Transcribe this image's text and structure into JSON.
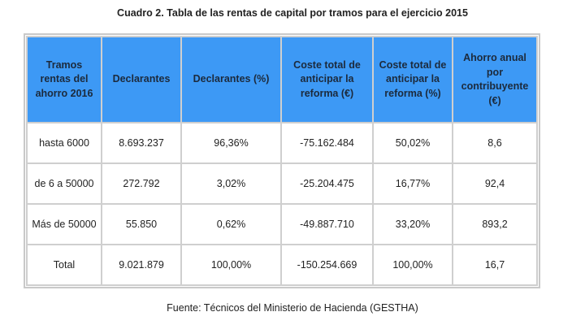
{
  "title": "Cuadro 2. Tabla de las rentas de capital por tramos para el ejercicio 2015",
  "headers": [
    "Tramos rentas del ahorro 2016",
    "Declarantes",
    "Declarantes (%)",
    "Coste total de anticipar la reforma (€)",
    "Coste total de anticipar la reforma (%)",
    "Ahorro anual por contribuyente (€)"
  ],
  "rows": [
    [
      "hasta 6000",
      "8.693.237",
      "96,36%",
      "-75.162.484",
      "50,02%",
      "8,6"
    ],
    [
      "de 6 a 50000",
      "272.792",
      "3,02%",
      "-25.204.475",
      "16,77%",
      "92,4"
    ],
    [
      "Más de 50000",
      "55.850",
      "0,62%",
      "-49.887.710",
      "33,20%",
      "893,2"
    ],
    [
      "Total",
      "9.021.879",
      "100,00%",
      "-150.254.669",
      "100,00%",
      "16,7"
    ]
  ],
  "source": "Fuente: Técnicos del Ministerio de Hacienda (GESTHA)"
}
